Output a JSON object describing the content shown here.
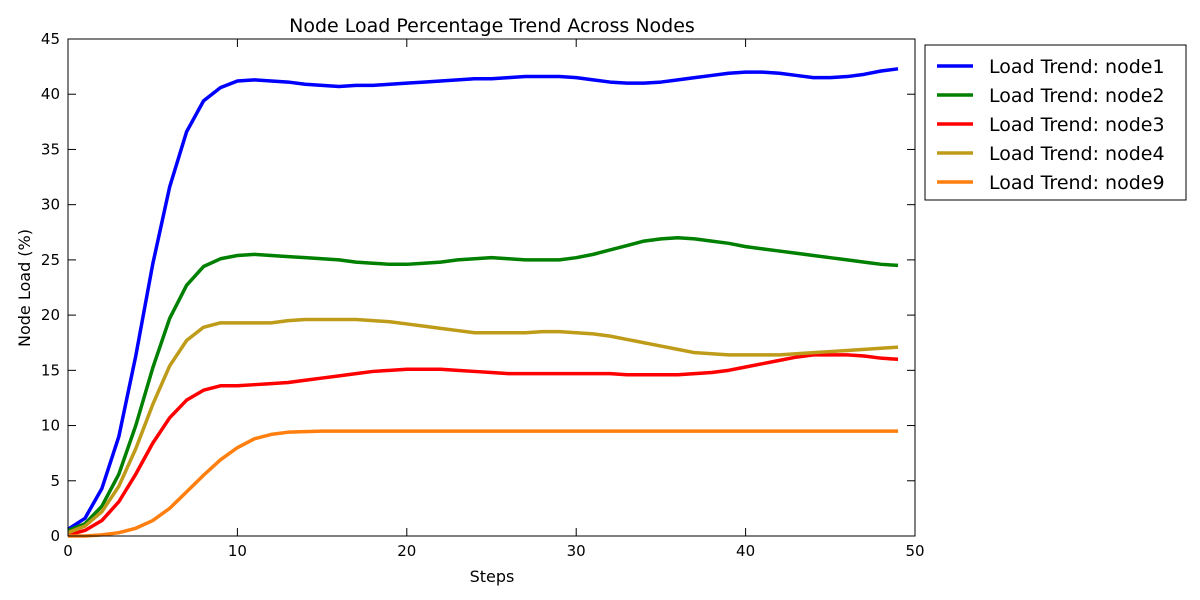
{
  "chart_data": {
    "type": "line",
    "title": "Node Load Percentage Trend Across Nodes",
    "xlabel": "Steps",
    "ylabel": "Node Load (%)",
    "xlim": [
      0,
      50
    ],
    "ylim": [
      0,
      45
    ],
    "xticks": [
      0,
      10,
      20,
      30,
      40,
      50
    ],
    "yticks": [
      0,
      5,
      10,
      15,
      20,
      25,
      30,
      35,
      40,
      45
    ],
    "grid": false,
    "legend_position": "outside-top-right",
    "x": [
      0,
      1,
      2,
      3,
      4,
      5,
      6,
      7,
      8,
      9,
      10,
      11,
      12,
      13,
      14,
      15,
      16,
      17,
      18,
      19,
      20,
      21,
      22,
      23,
      24,
      25,
      26,
      27,
      28,
      29,
      30,
      31,
      32,
      33,
      34,
      35,
      36,
      37,
      38,
      39,
      40,
      41,
      42,
      43,
      44,
      45,
      46,
      47,
      48,
      49
    ],
    "series": [
      {
        "name": "Load Trend: node1",
        "color": "#0000ff",
        "values": [
          0.6,
          1.6,
          4.3,
          9.0,
          16.3,
          24.6,
          31.6,
          36.6,
          39.4,
          40.6,
          41.2,
          41.3,
          41.2,
          41.1,
          40.9,
          40.8,
          40.7,
          40.8,
          40.8,
          40.9,
          41.0,
          41.1,
          41.2,
          41.3,
          41.4,
          41.4,
          41.5,
          41.6,
          41.6,
          41.6,
          41.5,
          41.3,
          41.1,
          41.0,
          41.0,
          41.1,
          41.3,
          41.5,
          41.7,
          41.9,
          42.0,
          42.0,
          41.9,
          41.7,
          41.5,
          41.5,
          41.6,
          41.8,
          42.1,
          42.3
        ]
      },
      {
        "name": "Load Trend: node2",
        "color": "#008000",
        "values": [
          0.5,
          1.1,
          2.7,
          5.6,
          10.0,
          15.2,
          19.7,
          22.7,
          24.4,
          25.1,
          25.4,
          25.5,
          25.4,
          25.3,
          25.2,
          25.1,
          25.0,
          24.8,
          24.7,
          24.6,
          24.6,
          24.7,
          24.8,
          25.0,
          25.1,
          25.2,
          25.1,
          25.0,
          25.0,
          25.0,
          25.2,
          25.5,
          25.9,
          26.3,
          26.7,
          26.9,
          27.0,
          26.9,
          26.7,
          26.5,
          26.2,
          26.0,
          25.8,
          25.6,
          25.4,
          25.2,
          25.0,
          24.8,
          24.6,
          24.5
        ]
      },
      {
        "name": "Load Trend: node3",
        "color": "#ff0000",
        "values": [
          0.1,
          0.5,
          1.4,
          3.1,
          5.6,
          8.4,
          10.7,
          12.3,
          13.2,
          13.6,
          13.6,
          13.7,
          13.8,
          13.9,
          14.1,
          14.3,
          14.5,
          14.7,
          14.9,
          15.0,
          15.1,
          15.1,
          15.1,
          15.0,
          14.9,
          14.8,
          14.7,
          14.7,
          14.7,
          14.7,
          14.7,
          14.7,
          14.7,
          14.6,
          14.6,
          14.6,
          14.6,
          14.7,
          14.8,
          15.0,
          15.3,
          15.6,
          15.9,
          16.2,
          16.4,
          16.4,
          16.4,
          16.3,
          16.1,
          16.0
        ]
      },
      {
        "name": "Load Trend: node4",
        "color": "#bf9b1a",
        "values": [
          0.3,
          0.9,
          2.2,
          4.5,
          7.9,
          11.9,
          15.4,
          17.7,
          18.9,
          19.3,
          19.3,
          19.3,
          19.3,
          19.5,
          19.6,
          19.6,
          19.6,
          19.6,
          19.5,
          19.4,
          19.2,
          19.0,
          18.8,
          18.6,
          18.4,
          18.4,
          18.4,
          18.4,
          18.5,
          18.5,
          18.4,
          18.3,
          18.1,
          17.8,
          17.5,
          17.2,
          16.9,
          16.6,
          16.5,
          16.4,
          16.4,
          16.4,
          16.4,
          16.5,
          16.6,
          16.7,
          16.8,
          16.9,
          17.0,
          17.1
        ]
      },
      {
        "name": "Load Trend: node9",
        "color": "#ff7f0e",
        "values": [
          0.0,
          0.0,
          0.1,
          0.3,
          0.7,
          1.4,
          2.5,
          4.0,
          5.5,
          6.9,
          8.0,
          8.8,
          9.2,
          9.4,
          9.45,
          9.5,
          9.5,
          9.5,
          9.5,
          9.5,
          9.5,
          9.5,
          9.5,
          9.5,
          9.5,
          9.5,
          9.5,
          9.5,
          9.5,
          9.5,
          9.5,
          9.5,
          9.5,
          9.5,
          9.5,
          9.5,
          9.5,
          9.5,
          9.5,
          9.5,
          9.5,
          9.5,
          9.5,
          9.5,
          9.5,
          9.5,
          9.5,
          9.5,
          9.5,
          9.5
        ]
      }
    ]
  }
}
